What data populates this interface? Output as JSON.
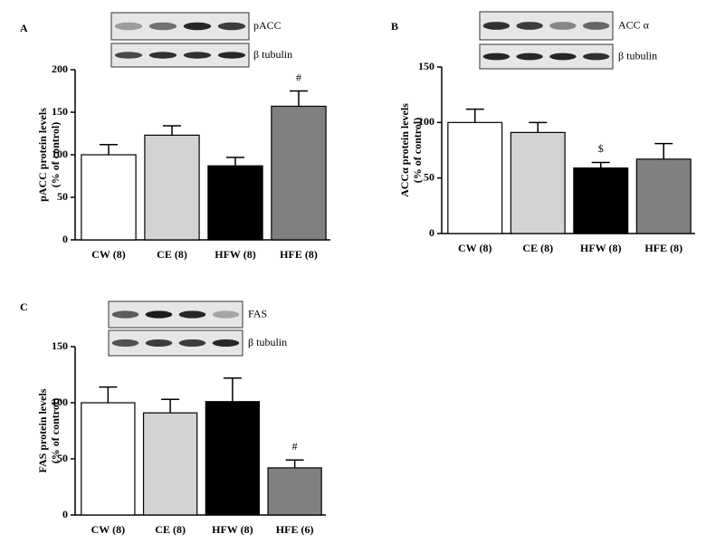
{
  "chart_data": [
    {
      "type": "bar",
      "panel": "A",
      "blot_labels": [
        "pACC",
        "β tubulin"
      ],
      "ylabel": [
        "pACC protein levels",
        "(% of control)"
      ],
      "categories": [
        "CW (8)",
        "CE (8)",
        "HFW (8)",
        "HFE (8)"
      ],
      "values": [
        100,
        123,
        87,
        157
      ],
      "errors": [
        12,
        11,
        10,
        18
      ],
      "colors": [
        "#ffffff",
        "#d3d3d3",
        "#000000",
        "#808080"
      ],
      "annotations": [
        null,
        null,
        null,
        "#"
      ],
      "ylim": [
        0,
        200
      ],
      "yticks": [
        0,
        50,
        100,
        150,
        200
      ]
    },
    {
      "type": "bar",
      "panel": "B",
      "blot_labels": [
        "ACC α",
        "β tubulin"
      ],
      "ylabel": [
        "ACCα  protein levels",
        "(% of control)"
      ],
      "categories": [
        "CW (8)",
        "CE (8)",
        "HFW (8)",
        "HFE (8)"
      ],
      "values": [
        100,
        91,
        59,
        67
      ],
      "errors": [
        12,
        9,
        5,
        14
      ],
      "colors": [
        "#ffffff",
        "#d3d3d3",
        "#000000",
        "#808080"
      ],
      "annotations": [
        null,
        null,
        "$",
        null
      ],
      "ylim": [
        0,
        150
      ],
      "yticks": [
        0,
        50,
        100,
        150
      ]
    },
    {
      "type": "bar",
      "panel": "C",
      "blot_labels": [
        "FAS",
        "β tubulin"
      ],
      "ylabel": [
        "FAS protein levels",
        "(% of control)"
      ],
      "categories": [
        "CW (8)",
        "CE (8)",
        "HFW (8)",
        "HFE (6)"
      ],
      "values": [
        100,
        91,
        101,
        42
      ],
      "errors": [
        14,
        12,
        21,
        7
      ],
      "colors": [
        "#ffffff",
        "#d3d3d3",
        "#000000",
        "#808080"
      ],
      "annotations": [
        null,
        null,
        null,
        "#"
      ],
      "ylim": [
        0,
        150
      ],
      "yticks": [
        0,
        50,
        100,
        150
      ]
    }
  ]
}
